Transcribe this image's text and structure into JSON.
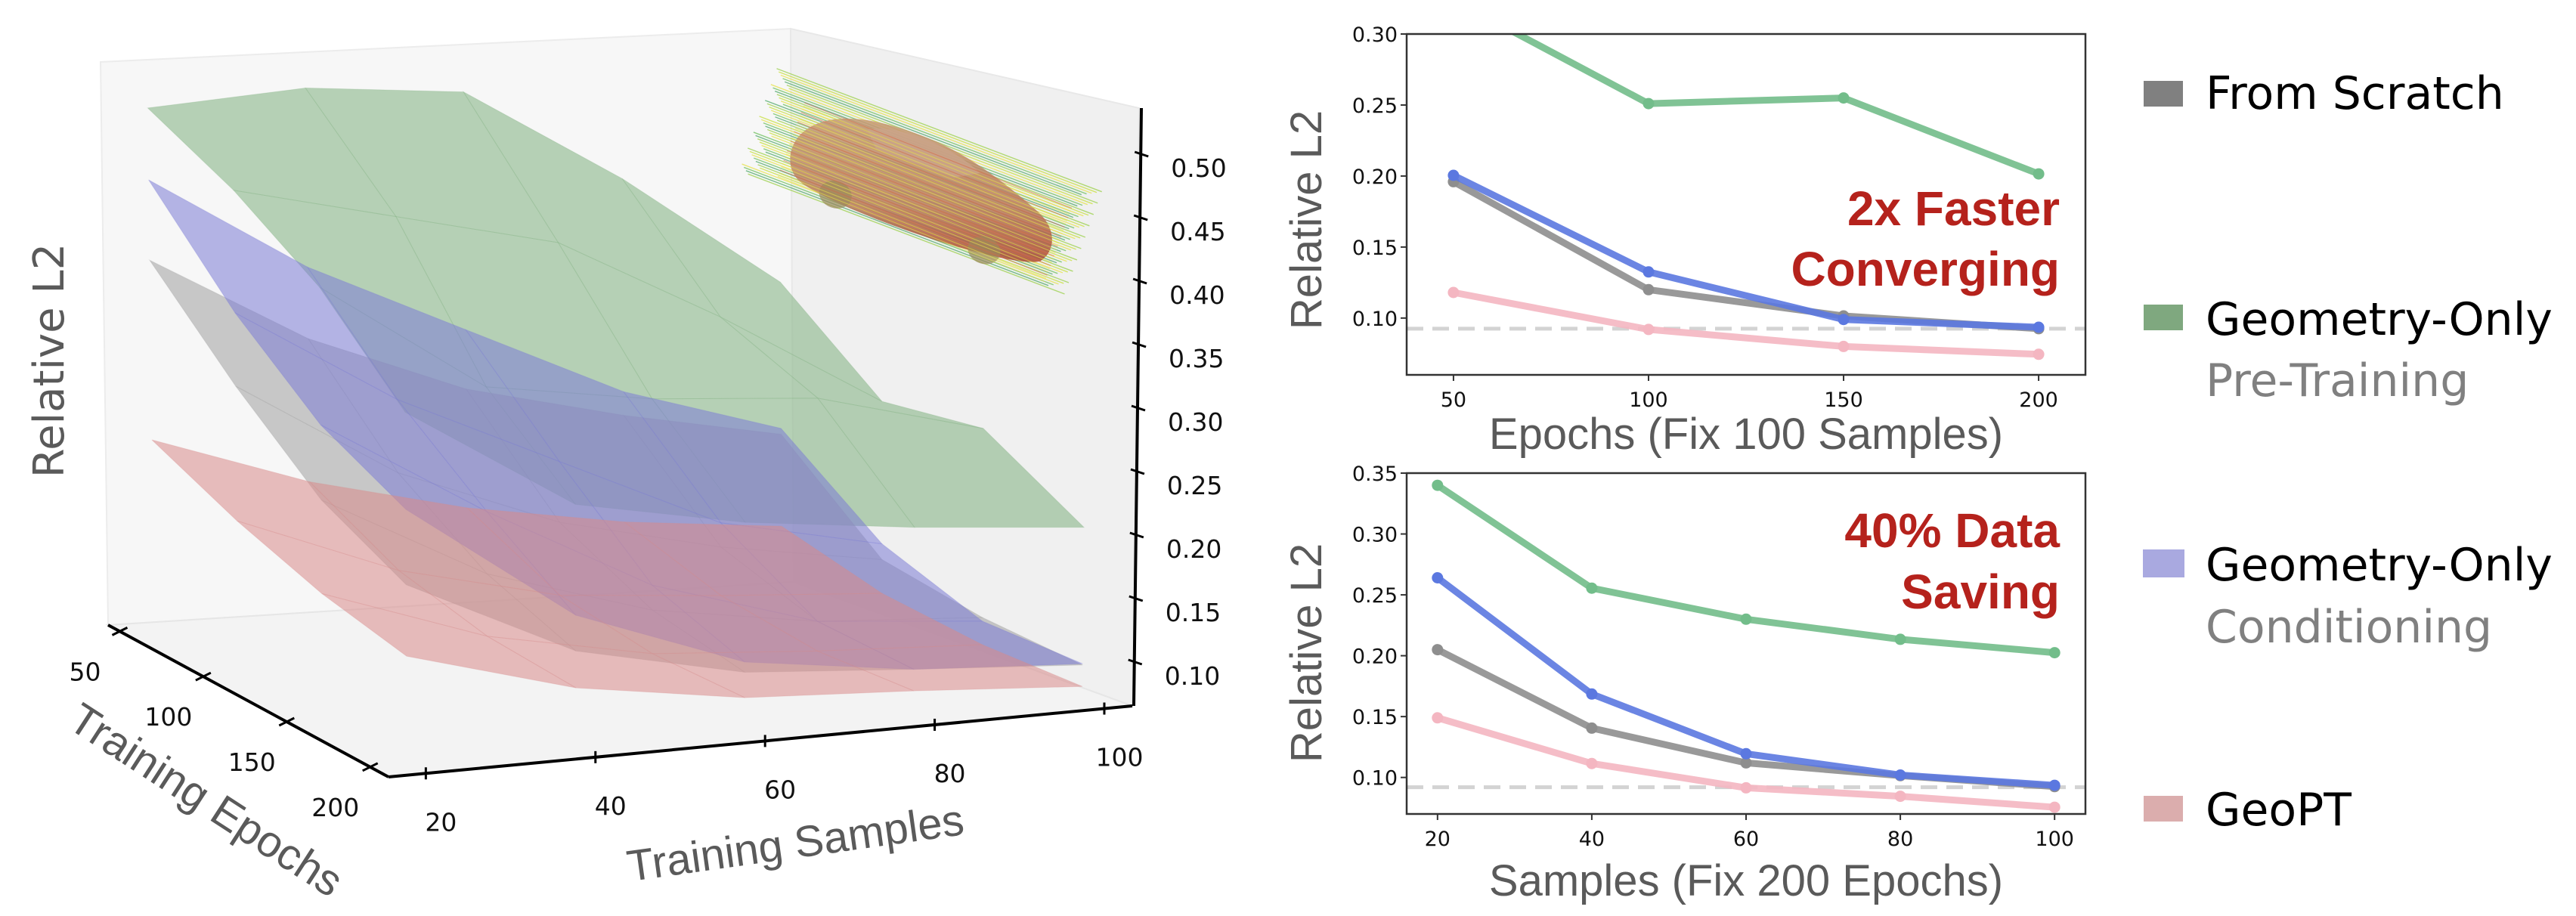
{
  "chart_data": [
    {
      "type": "surface3d",
      "title": "",
      "xlabel": "Training Samples",
      "ylabel": "Training Epochs",
      "zlabel": "Relative L2",
      "x_ticks": [
        "20",
        "40",
        "60",
        "80",
        "100"
      ],
      "y_ticks": [
        "50",
        "100",
        "150",
        "200"
      ],
      "z_ticks": [
        "0.50",
        "0.45",
        "0.40",
        "0.35",
        "0.30",
        "0.25",
        "0.20",
        "0.15",
        "0.10"
      ],
      "x": [
        20,
        40,
        60,
        80,
        100
      ],
      "y": [
        50,
        100,
        150,
        200
      ],
      "zlim": [
        0.065,
        0.536
      ],
      "inset_image": "car-airflow-streamlines",
      "series": [
        {
          "name": "Geometry-Only Pre-Training",
          "color": "#7fb07f",
          "z": [
            [
              0.5,
              0.51,
              0.5,
              0.42,
              0.325
            ],
            [
              0.46,
              0.43,
              0.4,
              0.33,
              0.251
            ],
            [
              0.41,
              0.32,
              0.3,
              0.29,
              0.255
            ],
            [
              0.34,
              0.256,
              0.23,
              0.214,
              0.202
            ]
          ]
        },
        {
          "name": "From Scratch",
          "color": "#a0a0a0",
          "z": [
            [
              0.373,
              0.3,
              0.25,
              0.22,
              0.196
            ],
            [
              0.3,
              0.22,
              0.17,
              0.14,
              0.12
            ],
            [
              0.24,
              0.17,
              0.13,
              0.11,
              0.102
            ],
            [
              0.205,
              0.141,
              0.112,
              0.102,
              0.093
            ]
          ]
        },
        {
          "name": "Geometry-Only Conditioning",
          "color": "#7b7bd6",
          "z": [
            [
              0.44,
              0.36,
              0.3,
              0.24,
              0.201
            ],
            [
              0.36,
              0.28,
              0.22,
              0.16,
              0.133
            ],
            [
              0.3,
              0.22,
              0.15,
              0.11,
              0.099
            ],
            [
              0.264,
              0.169,
              0.12,
              0.102,
              0.094
            ]
          ]
        },
        {
          "name": "GeoPT",
          "color": "#d98a8a",
          "z": [
            [
              0.223,
              0.18,
              0.15,
              0.13,
              0.118
            ],
            [
              0.19,
              0.14,
              0.11,
              0.1,
              0.092
            ],
            [
              0.165,
              0.12,
              0.095,
              0.086,
              0.08
            ],
            [
              0.149,
              0.112,
              0.092,
              0.085,
              0.076
            ]
          ]
        }
      ]
    },
    {
      "type": "line",
      "title": "",
      "xlabel": "Epochs (Fix 100 Samples)",
      "ylabel": "Relative L2",
      "x": [
        50,
        100,
        150,
        200
      ],
      "x_ticks": [
        "50",
        "100",
        "150",
        "200"
      ],
      "y_ticks": [
        "0.30",
        "0.25",
        "0.20",
        "0.15",
        "0.10"
      ],
      "ylim": [
        0.06,
        0.3
      ],
      "xlim": [
        38,
        212
      ],
      "grid": false,
      "reference_line": {
        "y": 0.0925,
        "style": "dashed",
        "color": "#d3d3d3"
      },
      "annotation": [
        "2x Faster",
        "Converging"
      ],
      "series": [
        {
          "name": "Geometry-Only Pre-Training",
          "color": "#72bd8a",
          "values": [
            0.324,
            0.251,
            0.255,
            0.2015
          ]
        },
        {
          "name": "From Scratch",
          "color": "#8e8e8e",
          "values": [
            0.196,
            0.12,
            0.1015,
            0.0925
          ]
        },
        {
          "name": "Geometry-Only Conditioning",
          "color": "#5b78e0",
          "values": [
            0.2005,
            0.1325,
            0.099,
            0.0935
          ]
        },
        {
          "name": "GeoPT",
          "color": "#f4b6c1",
          "values": [
            0.118,
            0.092,
            0.08,
            0.0745
          ]
        }
      ]
    },
    {
      "type": "line",
      "title": "",
      "xlabel": "Samples (Fix 200 Epochs)",
      "ylabel": "Relative L2",
      "x": [
        20,
        40,
        60,
        80,
        100
      ],
      "x_ticks": [
        "20",
        "40",
        "60",
        "80",
        "100"
      ],
      "y_ticks": [
        "0.35",
        "0.30",
        "0.25",
        "0.20",
        "0.15",
        "0.10"
      ],
      "ylim": [
        0.07,
        0.35
      ],
      "xlim": [
        16,
        104
      ],
      "grid": false,
      "reference_line": {
        "y": 0.092,
        "style": "dashed",
        "color": "#d3d3d3"
      },
      "annotation": [
        "40% Data",
        "Saving"
      ],
      "series": [
        {
          "name": "Geometry-Only Pre-Training",
          "color": "#72bd8a",
          "values": [
            0.34,
            0.2555,
            0.23,
            0.2135,
            0.2025
          ]
        },
        {
          "name": "From Scratch",
          "color": "#8e8e8e",
          "values": [
            0.205,
            0.1405,
            0.112,
            0.1015,
            0.0925
          ]
        },
        {
          "name": "Geometry-Only Conditioning",
          "color": "#5b78e0",
          "values": [
            0.264,
            0.1685,
            0.1195,
            0.102,
            0.0935
          ]
        },
        {
          "name": "GeoPT",
          "color": "#f4b6c1",
          "values": [
            0.149,
            0.1115,
            0.0915,
            0.0845,
            0.0755
          ]
        }
      ]
    }
  ],
  "legend": [
    {
      "label": "From Scratch",
      "sublabel": "",
      "color": "#808080"
    },
    {
      "label": "Geometry-Only",
      "sublabel": "Pre-Training",
      "color": "#7fa87f"
    },
    {
      "label": "Geometry-Only",
      "sublabel": "Conditioning",
      "color": "#a9a9e0"
    },
    {
      "label": "GeoPT",
      "sublabel": "",
      "color": "#dbadad"
    }
  ]
}
